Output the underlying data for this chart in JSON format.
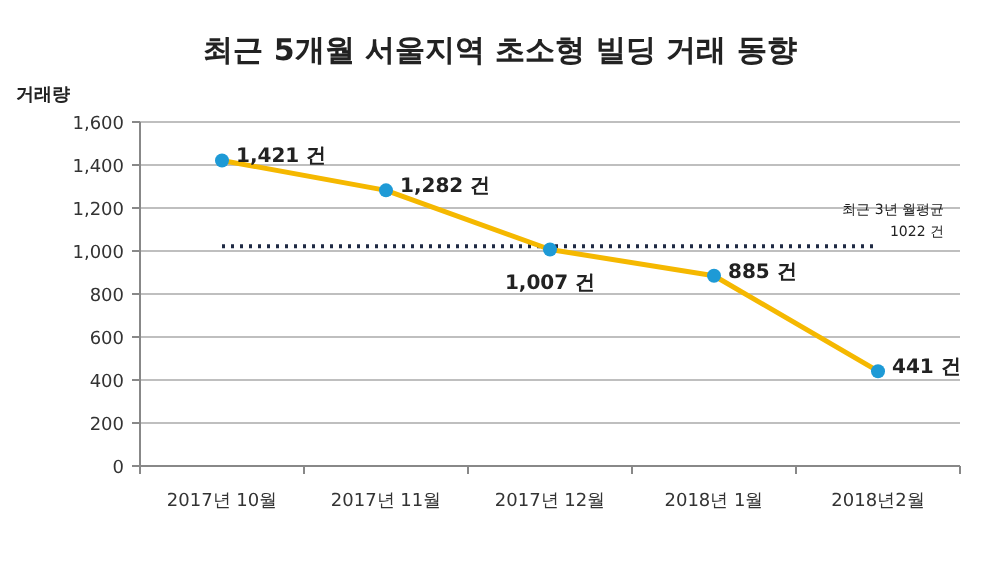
{
  "chart_data": {
    "type": "line",
    "title": "최근 5개월 서울지역 초소형 빌딩 거래 동향",
    "ylabel": "거래량",
    "categories": [
      "2017년 10월",
      "2017년 11월",
      "2017년 12월",
      "2018년 1월",
      "2018년2월"
    ],
    "series": [
      {
        "color": "#f5b800",
        "values": [
          1421,
          1282,
          1007,
          885,
          441
        ],
        "value_labels": [
          "1,421 건",
          "1,282 건",
          "1,007 건",
          "885 건",
          "441 건"
        ]
      }
    ],
    "ylim": [
      0,
      1600
    ],
    "yticks": [
      {
        "value": 0,
        "label": "0"
      },
      {
        "value": 200,
        "label": "200"
      },
      {
        "value": 400,
        "label": "400"
      },
      {
        "value": 600,
        "label": "600"
      },
      {
        "value": 800,
        "label": "800"
      },
      {
        "value": 1000,
        "label": "1,000"
      },
      {
        "value": 1200,
        "label": "1,200"
      },
      {
        "value": 1400,
        "label": "1,400"
      },
      {
        "value": 1600,
        "label": "1,600"
      }
    ],
    "ref_lines": [
      {
        "axis": "y",
        "value": 1022,
        "label": "최근 3년 월평균\n1022 건",
        "line_style": "dotted",
        "color": "#1f2a44"
      }
    ],
    "grid": "y",
    "marker": "circle",
    "line_style": "solid"
  }
}
